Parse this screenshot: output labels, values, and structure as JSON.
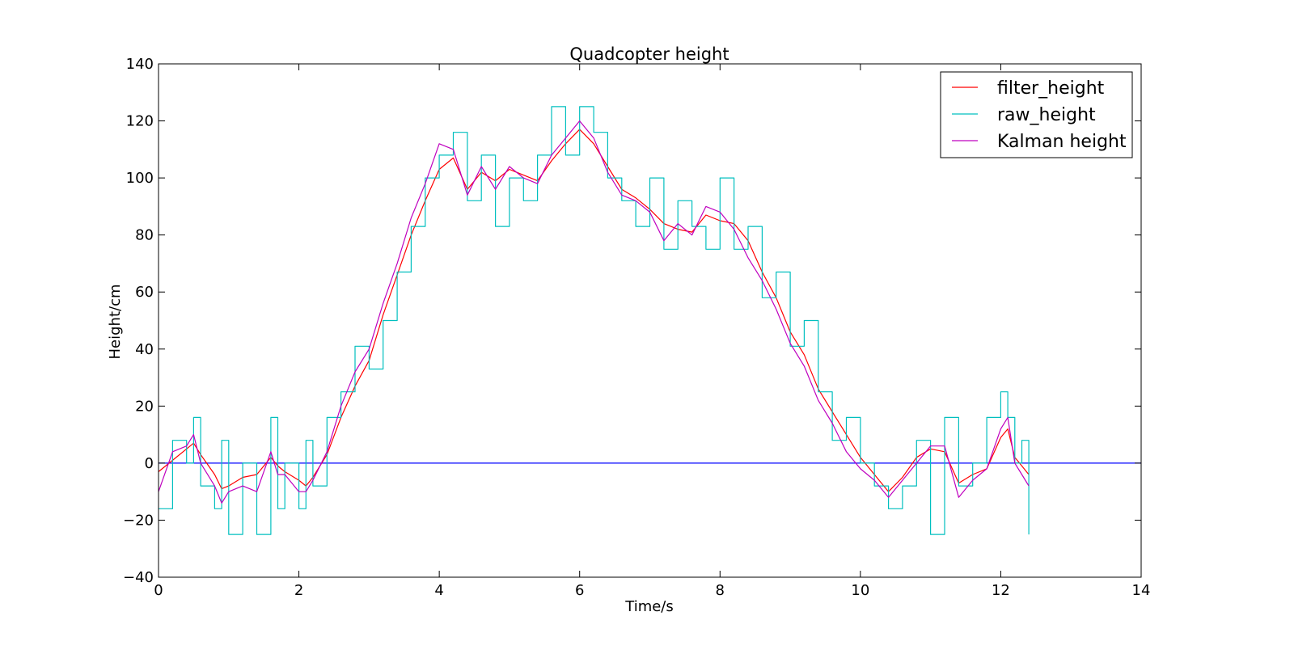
{
  "chart_data": {
    "type": "line",
    "title": "Quadcopter height",
    "xlabel": "Time/s",
    "ylabel": "Height/cm",
    "xlim": [
      0,
      14
    ],
    "ylim": [
      -40,
      140
    ],
    "xticks": [
      0,
      2,
      4,
      6,
      8,
      10,
      12,
      14
    ],
    "yticks": [
      -40,
      -20,
      0,
      20,
      40,
      60,
      80,
      100,
      120,
      140
    ],
    "xtick_labels": [
      "0",
      "2",
      "4",
      "6",
      "8",
      "10",
      "12",
      "14"
    ],
    "ytick_labels": [
      "−40",
      "−20",
      "0",
      "20",
      "40",
      "60",
      "80",
      "100",
      "120",
      "140"
    ],
    "grid": false,
    "legend_position": "top-right",
    "reference_line": {
      "y": 0,
      "color": "#0000ff"
    },
    "series": [
      {
        "name": "filter_height",
        "color": "#ff0000",
        "x": [
          0,
          0.2,
          0.4,
          0.5,
          0.6,
          0.8,
          0.9,
          1.0,
          1.2,
          1.4,
          1.6,
          1.7,
          1.8,
          2.0,
          2.1,
          2.2,
          2.4,
          2.6,
          2.8,
          3.0,
          3.2,
          3.4,
          3.6,
          3.8,
          4.0,
          4.2,
          4.4,
          4.6,
          4.8,
          5.0,
          5.2,
          5.4,
          5.6,
          5.8,
          6.0,
          6.2,
          6.4,
          6.6,
          6.8,
          7.0,
          7.2,
          7.4,
          7.6,
          7.8,
          8.0,
          8.2,
          8.4,
          8.6,
          8.8,
          9.0,
          9.2,
          9.4,
          9.6,
          9.8,
          10.0,
          10.2,
          10.4,
          10.6,
          10.8,
          11.0,
          11.2,
          11.4,
          11.6,
          11.8,
          12.0,
          12.1,
          12.2,
          12.3,
          12.4
        ],
        "y": [
          -3,
          1,
          5,
          7,
          3,
          -4,
          -9,
          -8,
          -5,
          -4,
          2,
          -1,
          -3,
          -6,
          -8,
          -5,
          3,
          16,
          27,
          36,
          52,
          66,
          80,
          92,
          103,
          107,
          96,
          102,
          99,
          103,
          101,
          99,
          106,
          112,
          117,
          112,
          104,
          96,
          93,
          89,
          84,
          82,
          81,
          87,
          85,
          84,
          78,
          67,
          58,
          46,
          38,
          26,
          18,
          10,
          2,
          -4,
          -10,
          -5,
          2,
          5,
          4,
          -7,
          -4,
          -2,
          9,
          12,
          2,
          -1,
          -4
        ]
      },
      {
        "name": "raw_height",
        "color": "#00bfbf",
        "x": [
          0,
          0.2,
          0.4,
          0.5,
          0.6,
          0.8,
          0.9,
          1.0,
          1.2,
          1.4,
          1.6,
          1.7,
          1.8,
          2.0,
          2.1,
          2.2,
          2.4,
          2.6,
          2.8,
          3.0,
          3.2,
          3.4,
          3.6,
          3.8,
          4.0,
          4.2,
          4.4,
          4.6,
          4.8,
          5.0,
          5.2,
          5.4,
          5.6,
          5.8,
          6.0,
          6.2,
          6.4,
          6.6,
          6.8,
          7.0,
          7.2,
          7.4,
          7.6,
          7.8,
          8.0,
          8.2,
          8.4,
          8.6,
          8.8,
          9.0,
          9.2,
          9.4,
          9.6,
          9.8,
          10.0,
          10.2,
          10.4,
          10.6,
          10.8,
          11.0,
          11.2,
          11.4,
          11.6,
          11.8,
          12.0,
          12.1,
          12.2,
          12.3,
          12.4
        ],
        "y": [
          -16,
          8,
          0,
          16,
          -8,
          -16,
          8,
          -25,
          0,
          -25,
          16,
          -16,
          0,
          -16,
          8,
          -8,
          16,
          25,
          41,
          33,
          50,
          67,
          83,
          100,
          108,
          116,
          92,
          108,
          83,
          100,
          92,
          108,
          125,
          108,
          125,
          116,
          100,
          92,
          83,
          100,
          75,
          92,
          83,
          75,
          100,
          75,
          83,
          58,
          67,
          41,
          50,
          25,
          8,
          16,
          0,
          -8,
          -16,
          -8,
          8,
          -25,
          16,
          -8,
          0,
          16,
          25,
          16,
          0,
          8,
          -25
        ]
      },
      {
        "name": "Kalman height",
        "color": "#bf00bf",
        "x": [
          0,
          0.2,
          0.4,
          0.5,
          0.6,
          0.8,
          0.9,
          1.0,
          1.2,
          1.4,
          1.6,
          1.7,
          1.8,
          2.0,
          2.1,
          2.2,
          2.4,
          2.6,
          2.8,
          3.0,
          3.2,
          3.4,
          3.6,
          3.8,
          4.0,
          4.2,
          4.4,
          4.6,
          4.8,
          5.0,
          5.2,
          5.4,
          5.6,
          5.8,
          6.0,
          6.2,
          6.4,
          6.6,
          6.8,
          7.0,
          7.2,
          7.4,
          7.6,
          7.8,
          8.0,
          8.2,
          8.4,
          8.6,
          8.8,
          9.0,
          9.2,
          9.4,
          9.6,
          9.8,
          10.0,
          10.2,
          10.4,
          10.6,
          10.8,
          11.0,
          11.2,
          11.4,
          11.6,
          11.8,
          12.0,
          12.1,
          12.2,
          12.3,
          12.4
        ],
        "y": [
          -10,
          4,
          6,
          10,
          0,
          -8,
          -14,
          -10,
          -8,
          -10,
          4,
          -4,
          -4,
          -10,
          -10,
          -6,
          4,
          20,
          32,
          40,
          56,
          70,
          86,
          98,
          112,
          110,
          94,
          104,
          96,
          104,
          100,
          98,
          108,
          114,
          120,
          114,
          102,
          94,
          92,
          88,
          78,
          84,
          80,
          90,
          88,
          82,
          72,
          64,
          54,
          42,
          34,
          22,
          14,
          4,
          -2,
          -6,
          -12,
          -6,
          0,
          6,
          6,
          -12,
          -6,
          -2,
          12,
          16,
          0,
          -4,
          -8
        ]
      }
    ]
  }
}
